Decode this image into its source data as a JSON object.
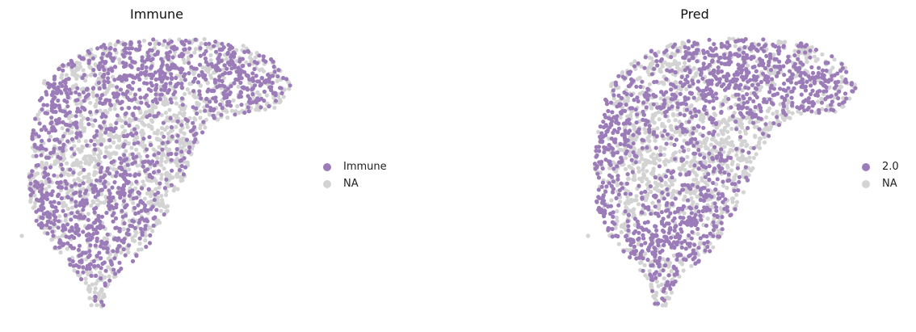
{
  "colors": {
    "positive": "#9b7cb8",
    "na": "#d3d3d3"
  },
  "chart_data": [
    {
      "type": "scatter",
      "title": "Immune",
      "legend": [
        {
          "label": "Immune",
          "color": "#9b7cb8"
        },
        {
          "label": "NA",
          "color": "#d3d3d3"
        }
      ],
      "legend_placement": "right",
      "grid": false,
      "axes_visible": false,
      "seed": 11
    },
    {
      "type": "scatter",
      "title": "Pred",
      "legend": [
        {
          "label": "2.0",
          "color": "#9b7cb8"
        },
        {
          "label": "NA",
          "color": "#d3d3d3"
        }
      ],
      "legend_placement": "right",
      "grid": false,
      "axes_visible": false,
      "seed": 29
    }
  ]
}
